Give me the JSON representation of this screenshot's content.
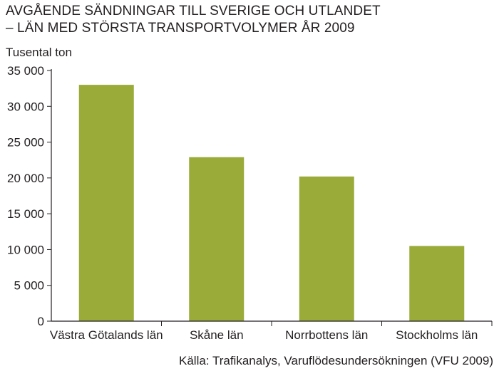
{
  "chart_data": {
    "type": "bar",
    "title_lines": [
      "AVGÅENDE SÄNDNINGAR TILL SVERIGE OCH UTLANDET",
      "– LÄN MED STÖRSTA TRANSPORTVOLYMER ÅR 2009"
    ],
    "ylabel": "Tusental ton",
    "xlabel": "",
    "categories": [
      "Västra Götalands län",
      "Skåne län",
      "Norrbottens län",
      "Stockholms län"
    ],
    "values": [
      33000,
      22900,
      20200,
      10500
    ],
    "ylim": [
      0,
      35000
    ],
    "yticks": [
      0,
      5000,
      10000,
      15000,
      20000,
      25000,
      30000,
      35000
    ],
    "ytick_labels": [
      "0",
      "5 000",
      "10 000",
      "15 000",
      "20 000",
      "25 000",
      "30 000",
      "35 000"
    ],
    "bar_color": "#9aab3a",
    "grid": false,
    "source": "Källa: Trafikanalys, Varuflödesundersökningen (VFU 2009)"
  }
}
